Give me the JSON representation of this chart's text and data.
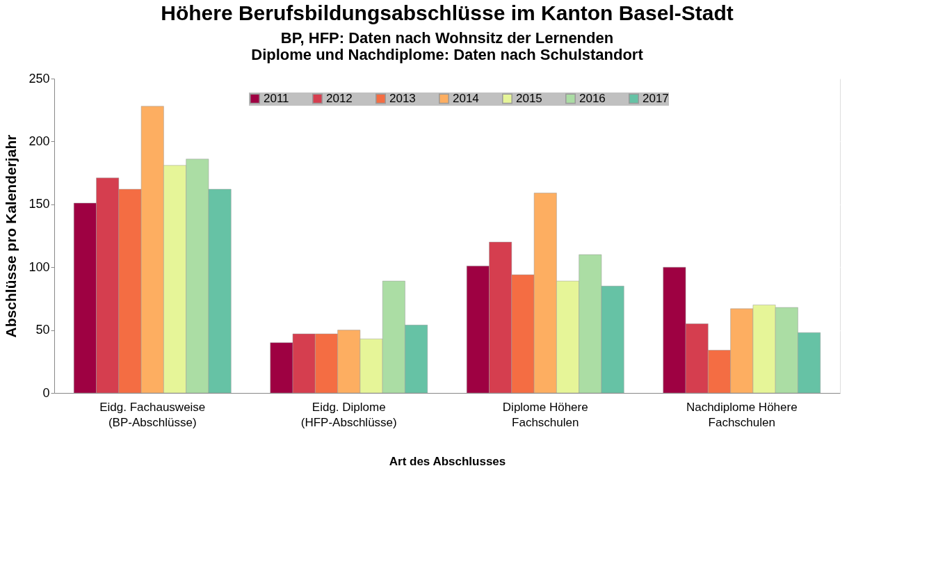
{
  "chart_data": {
    "type": "bar",
    "title": "Höhere Berufsbildungsabschlüsse im Kanton Basel-Stadt",
    "subtitle": "BP, HFP:  Daten nach Wohnsitz der Lernenden\nDiplome und Nachdiplome:  Daten nach Schulstandort",
    "xlabel": "Art des Abschlusses",
    "ylabel": "Abschlüsse pro Kalenderjahr",
    "categories": [
      "Eidg. Fachausweise (BP-Abschlüsse)",
      "Eidg. Diplome (HFP-Abschlüsse)",
      "Diplome Höhere Fachschulen",
      "Nachdiplome Höhere Fachschulen"
    ],
    "series": [
      {
        "name": "2011",
        "color": "#9e0142",
        "values": [
          151,
          40,
          101,
          100
        ]
      },
      {
        "name": "2012",
        "color": "#d53e4f",
        "values": [
          171,
          47,
          120,
          55
        ]
      },
      {
        "name": "2013",
        "color": "#f46d43",
        "values": [
          162,
          47,
          94,
          34
        ]
      },
      {
        "name": "2014",
        "color": "#fdae61",
        "values": [
          228,
          50,
          159,
          67
        ]
      },
      {
        "name": "2015",
        "color": "#e6f598",
        "values": [
          181,
          43,
          89,
          70
        ]
      },
      {
        "name": "2016",
        "color": "#abdda4",
        "values": [
          186,
          89,
          110,
          68
        ]
      },
      {
        "name": "2017",
        "color": "#66c2a5",
        "values": [
          162,
          54,
          85,
          48
        ]
      }
    ],
    "ylim": [
      0,
      250
    ],
    "yticks": [
      0,
      50,
      100,
      150,
      200,
      250
    ],
    "grid": "y",
    "legend": "top"
  }
}
